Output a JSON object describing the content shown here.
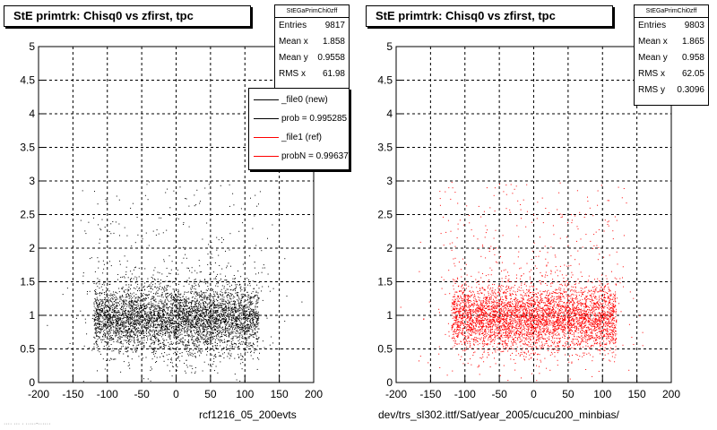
{
  "colors": {
    "new": "#000000",
    "ref": "#ff0000"
  },
  "footnote": "···· ··· · ·····-······",
  "panels": [
    {
      "title": "StE primtrk: Chisq0 vs zfirst, tpc",
      "caption": "rcf1216_05_200evts",
      "stats": {
        "name": "StEGaPrimChi0zff",
        "rows": [
          {
            "label": "Entries",
            "value": "9817"
          },
          {
            "label": "Mean x",
            "value": "1.858"
          },
          {
            "label": "Mean y",
            "value": "0.9558"
          },
          {
            "label": "RMS x",
            "value": "61.98"
          }
        ]
      },
      "legend": [
        {
          "label": "_file0 (new)",
          "color": "#000000"
        },
        {
          "label": "prob = 0.995285",
          "color": "#000000"
        },
        {
          "label": "_file1 (ref)",
          "color": "#ff0000"
        },
        {
          "label": "probN = 0.996371",
          "color": "#ff0000"
        }
      ]
    },
    {
      "title": "StE primtrk: Chisq0 vs zfirst, tpc",
      "caption": "dev/trs_sl302.ittf/Sat/year_2005/cucu200_minbias/",
      "stats": {
        "name": "StEGaPrimChi0zff",
        "rows": [
          {
            "label": "Entries",
            "value": "9803"
          },
          {
            "label": "Mean x",
            "value": "1.865"
          },
          {
            "label": "Mean y",
            "value": "0.958"
          },
          {
            "label": "RMS x",
            "value": "62.05"
          },
          {
            "label": "RMS y",
            "value": "0.3096"
          }
        ]
      }
    }
  ],
  "chart_data": [
    {
      "type": "scatter",
      "title": "StE primtrk: Chisq0 vs zfirst, tpc",
      "xlabel": "rcf1216_05_200evts",
      "ylabel": "",
      "xlim": [
        -200,
        200
      ],
      "ylim": [
        0,
        5
      ],
      "xticks": [
        -200,
        -150,
        -100,
        -50,
        0,
        50,
        100,
        150,
        200
      ],
      "yticks": [
        0,
        0.5,
        1,
        1.5,
        2,
        2.5,
        3,
        3.5,
        4,
        4.5,
        5
      ],
      "grid": true,
      "series": [
        {
          "name": "_file0 (new)",
          "color": "#000000",
          "entries": 9817,
          "mean_x": 1.858,
          "mean_y": 0.9558,
          "rms_x": 61.98,
          "core_x": [
            -120,
            120
          ],
          "core_y": [
            0.7,
            1.3
          ]
        }
      ]
    },
    {
      "type": "scatter",
      "title": "StE primtrk: Chisq0 vs zfirst, tpc",
      "xlabel": "dev/trs_sl302.ittf/Sat/year_2005/cucu200_minbias/",
      "ylabel": "",
      "xlim": [
        -200,
        200
      ],
      "ylim": [
        0,
        5
      ],
      "xticks": [
        -200,
        -150,
        -100,
        -50,
        0,
        50,
        100,
        150,
        200
      ],
      "yticks": [
        0,
        0.5,
        1,
        1.5,
        2,
        2.5,
        3,
        3.5,
        4,
        4.5,
        5
      ],
      "grid": true,
      "series": [
        {
          "name": "_file1 (ref)",
          "color": "#ff0000",
          "entries": 9803,
          "mean_x": 1.865,
          "mean_y": 0.958,
          "rms_x": 62.05,
          "rms_y": 0.3096,
          "core_x": [
            -120,
            120
          ],
          "core_y": [
            0.7,
            1.3
          ]
        }
      ]
    }
  ]
}
